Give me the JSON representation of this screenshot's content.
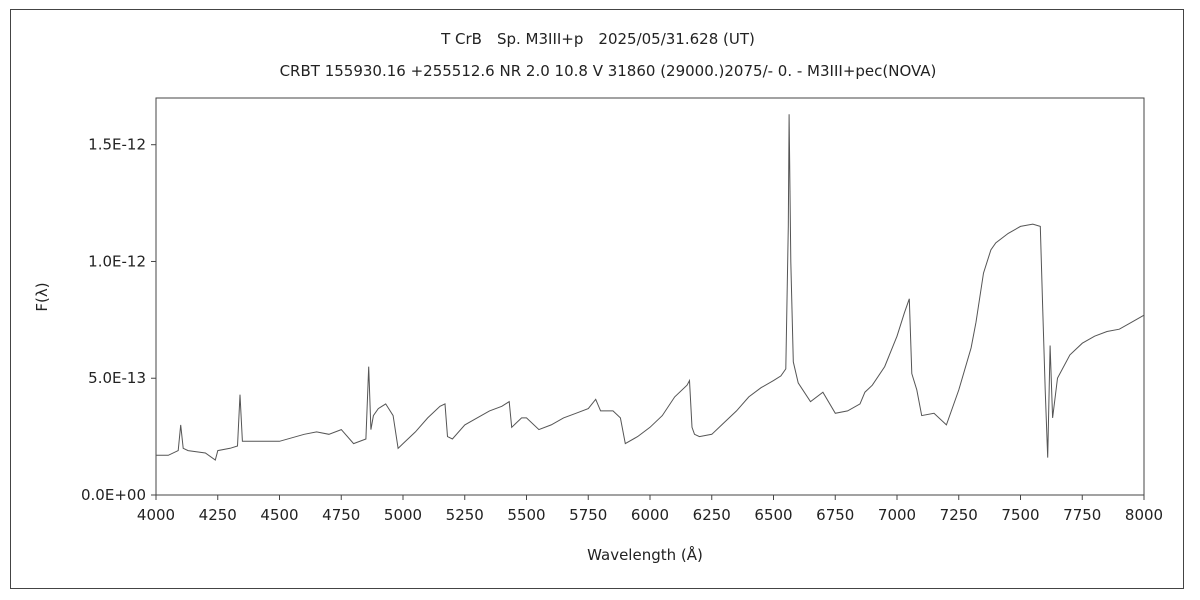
{
  "chart_data": {
    "type": "line",
    "title": "T CrB　Sp. M3III+p　2025/05/31.628 (UT)",
    "subtitle": "CRBT 155930.16 +255512.6 NR 2.0 10.8 V 31860 (29000.)2075/-  0. - M3III+pec(NOVA)",
    "xlabel": "Wavelength (Å)",
    "ylabel": "F(λ)",
    "xlim": [
      4000,
      8000
    ],
    "ylim": [
      0,
      1.7e-12
    ],
    "x_ticks": [
      4000,
      4250,
      4500,
      4750,
      5000,
      5250,
      5500,
      5750,
      6000,
      6250,
      6500,
      6750,
      7000,
      7250,
      7500,
      7750,
      8000
    ],
    "x_tick_labels": [
      "4000",
      "4250",
      "4500",
      "4750",
      "5000",
      "5250",
      "5500",
      "5750",
      "6000",
      "6250",
      "6500",
      "6750",
      "7000",
      "7250",
      "7500",
      "7750",
      "8000"
    ],
    "y_ticks": [
      0,
      5e-13,
      1e-12,
      1.5e-12
    ],
    "y_tick_labels": [
      "0.0E+00",
      "5.0E-13",
      "1.0E-12",
      "1.5E-12"
    ],
    "grid": false,
    "legend": "none",
    "line_color": "#555555",
    "series": [
      {
        "x": [
          4000,
          4050,
          4090,
          4100,
          4110,
          4130,
          4200,
          4240,
          4250,
          4300,
          4330,
          4340,
          4350,
          4400,
          4500,
          4600,
          4650,
          4700,
          4750,
          4800,
          4850,
          4861,
          4870,
          4880,
          4900,
          4930,
          4960,
          4980,
          5000,
          5050,
          5100,
          5150,
          5170,
          5180,
          5200,
          5250,
          5300,
          5350,
          5400,
          5430,
          5440,
          5460,
          5480,
          5500,
          5550,
          5600,
          5650,
          5700,
          5750,
          5780,
          5800,
          5850,
          5880,
          5900,
          5950,
          6000,
          6050,
          6100,
          6150,
          6160,
          6170,
          6180,
          6200,
          6250,
          6300,
          6350,
          6400,
          6450,
          6500,
          6530,
          6550,
          6560,
          6563,
          6570,
          6580,
          6600,
          6650,
          6700,
          6750,
          6800,
          6850,
          6870,
          6900,
          6950,
          7000,
          7030,
          7050,
          7060,
          7080,
          7100,
          7150,
          7200,
          7250,
          7300,
          7320,
          7350,
          7380,
          7400,
          7450,
          7500,
          7550,
          7580,
          7590,
          7600,
          7610,
          7620,
          7630,
          7650,
          7700,
          7750,
          7800,
          7850,
          7900,
          7950,
          8000
        ],
        "y": [
          1.7e-13,
          1.7e-13,
          1.9e-13,
          3e-13,
          2e-13,
          1.9e-13,
          1.8e-13,
          1.5e-13,
          1.9e-13,
          2e-13,
          2.1e-13,
          4.3e-13,
          2.3e-13,
          2.3e-13,
          2.3e-13,
          2.6e-13,
          2.7e-13,
          2.6e-13,
          2.8e-13,
          2.2e-13,
          2.4e-13,
          5.5e-13,
          2.8e-13,
          3.4e-13,
          3.7e-13,
          3.9e-13,
          3.4e-13,
          2e-13,
          2.2e-13,
          2.7e-13,
          3.3e-13,
          3.8e-13,
          3.9e-13,
          2.5e-13,
          2.4e-13,
          3e-13,
          3.3e-13,
          3.6e-13,
          3.8e-13,
          4e-13,
          2.9e-13,
          3.1e-13,
          3.3e-13,
          3.3e-13,
          2.8e-13,
          3e-13,
          3.3e-13,
          3.5e-13,
          3.7e-13,
          4.1e-13,
          3.6e-13,
          3.6e-13,
          3.3e-13,
          2.2e-13,
          2.5e-13,
          2.9e-13,
          3.4e-13,
          4.2e-13,
          4.7e-13,
          4.9e-13,
          2.9e-13,
          2.6e-13,
          2.5e-13,
          2.6e-13,
          3.1e-13,
          3.6e-13,
          4.2e-13,
          4.6e-13,
          4.9e-13,
          5.1e-13,
          5.4e-13,
          1.15e-12,
          1.63e-12,
          1e-12,
          5.7e-13,
          4.8e-13,
          4e-13,
          4.4e-13,
          3.5e-13,
          3.6e-13,
          3.9e-13,
          4.4e-13,
          4.7e-13,
          5.5e-13,
          6.8e-13,
          7.8e-13,
          8.4e-13,
          5.2e-13,
          4.5e-13,
          3.4e-13,
          3.5e-13,
          3e-13,
          4.5e-13,
          6.3e-13,
          7.4e-13,
          9.5e-13,
          1.05e-12,
          1.08e-12,
          1.12e-12,
          1.15e-12,
          1.16e-12,
          1.15e-12,
          8e-13,
          4.5e-13,
          1.6e-13,
          6.4e-13,
          3.3e-13,
          5e-13,
          6e-13,
          6.5e-13,
          6.8e-13,
          7e-13,
          7.1e-13,
          7.4e-13,
          7.7e-13
        ]
      }
    ]
  }
}
